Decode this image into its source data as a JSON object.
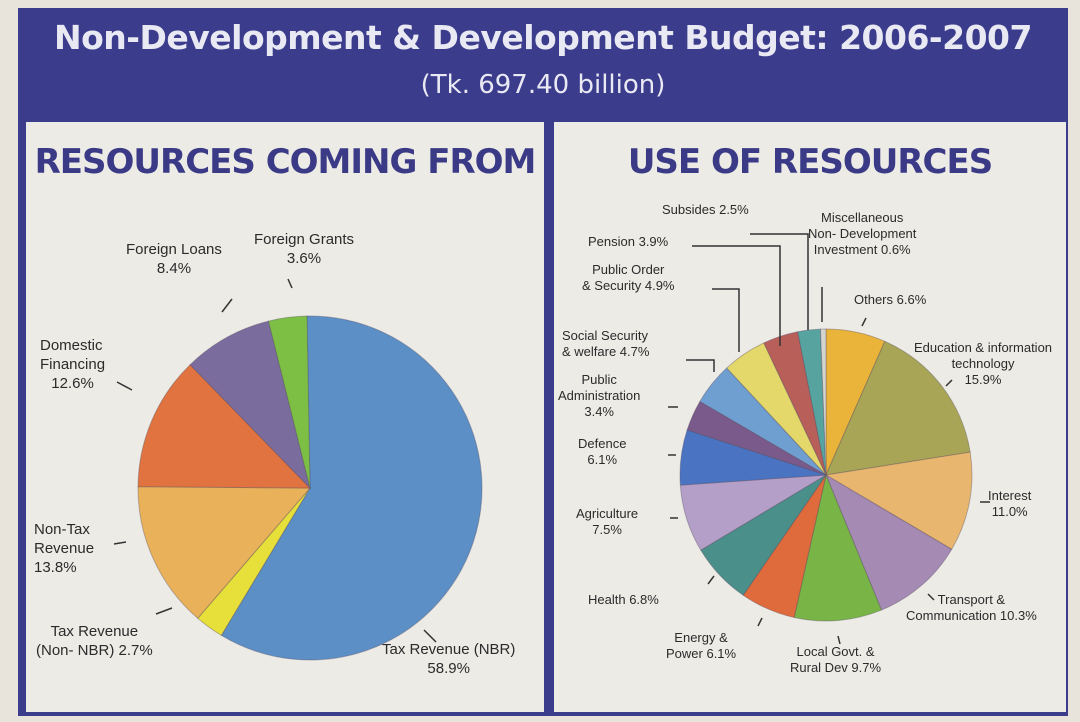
{
  "title": "Non-Development & Development Budget: 2006-2007",
  "subtitle": "(Tk. 697.40 billion)",
  "chart_data": [
    {
      "type": "pie",
      "title": "RESOURCES COMING FROM",
      "slices": [
        {
          "label": "Tax Revenue (NBR)",
          "value": 58.9,
          "color": "#5b8fc6"
        },
        {
          "label": "Tax Revenue (Non- NBR)",
          "value": 2.7,
          "color": "#e7df3a"
        },
        {
          "label": "Non-Tax Revenue",
          "value": 13.8,
          "color": "#e9b15a"
        },
        {
          "label": "Domestic Financing",
          "value": 12.6,
          "color": "#e0733f"
        },
        {
          "label": "Foreign Loans",
          "value": 8.4,
          "color": "#7b6c9e"
        },
        {
          "label": "Foreign Grants",
          "value": 3.6,
          "color": "#7cbf44"
        }
      ],
      "labels": {
        "foreign_loans": [
          "Foreign Loans",
          "8.4%"
        ],
        "foreign_grants": [
          "Foreign Grants",
          "3.6%"
        ],
        "domestic": [
          "Domestic",
          "Financing",
          "12.6%"
        ],
        "non_tax": [
          "Non-Tax",
          "Revenue",
          "13.8%"
        ],
        "tax_non_nbr": [
          "Tax Revenue",
          "(Non- NBR) 2.7%"
        ],
        "tax_nbr": [
          "Tax Revenue (NBR)",
          "58.9%"
        ]
      }
    },
    {
      "type": "pie",
      "title": "USE OF RESOURCES",
      "slices": [
        {
          "label": "Others",
          "value": 6.6,
          "color": "#eab33a"
        },
        {
          "label": "Education & information technology",
          "value": 15.9,
          "color": "#a8a656"
        },
        {
          "label": "Interest",
          "value": 11.0,
          "color": "#e8b66e"
        },
        {
          "label": "Transport & Communication",
          "value": 10.3,
          "color": "#a58ab3"
        },
        {
          "label": "Local Govt. & Rural Dev",
          "value": 9.7,
          "color": "#79b447"
        },
        {
          "label": "Energy & Power",
          "value": 6.1,
          "color": "#df6a3c"
        },
        {
          "label": "Health",
          "value": 6.8,
          "color": "#4a8f8a"
        },
        {
          "label": "Agriculture",
          "value": 7.5,
          "color": "#b49fc8"
        },
        {
          "label": "Defence",
          "value": 6.1,
          "color": "#4a74c2"
        },
        {
          "label": "Public Administration",
          "value": 3.4,
          "color": "#7a5a8a"
        },
        {
          "label": "Social Security & welfare",
          "value": 4.7,
          "color": "#6f9fd0"
        },
        {
          "label": "Public Order & Security",
          "value": 4.9,
          "color": "#e4d86a"
        },
        {
          "label": "Pension",
          "value": 3.9,
          "color": "#b85f5a"
        },
        {
          "label": "Subsides",
          "value": 2.5,
          "color": "#57a3a0"
        },
        {
          "label": "Miscellaneous Non- Development Investment",
          "value": 0.6,
          "color": "#d5d5d0"
        }
      ],
      "labels": {
        "subsides": [
          "Subsides 2.5%"
        ],
        "misc": [
          "Miscellaneous",
          "Non- Development",
          "Investment 0.6%"
        ],
        "pension": [
          "Pension 3.9%"
        ],
        "public_order": [
          "Public Order",
          "& Security 4.9%"
        ],
        "others": [
          "Others 6.6%"
        ],
        "social": [
          "Social Security",
          "& welfare 4.7%"
        ],
        "education": [
          "Education & information",
          "technology",
          "15.9%"
        ],
        "public_admin": [
          "Public",
          "Administration",
          "3.4%"
        ],
        "defence": [
          "Defence",
          "6.1%"
        ],
        "interest": [
          "Interest",
          "11.0%"
        ],
        "agriculture": [
          "Agriculture",
          "7.5%"
        ],
        "health": [
          "Health 6.8%"
        ],
        "transport": [
          "Transport &",
          "Communication 10.3%"
        ],
        "energy": [
          "Energy &",
          "Power 6.1%"
        ],
        "local_govt": [
          "Local Govt. &",
          "Rural Dev 9.7%"
        ]
      }
    }
  ]
}
